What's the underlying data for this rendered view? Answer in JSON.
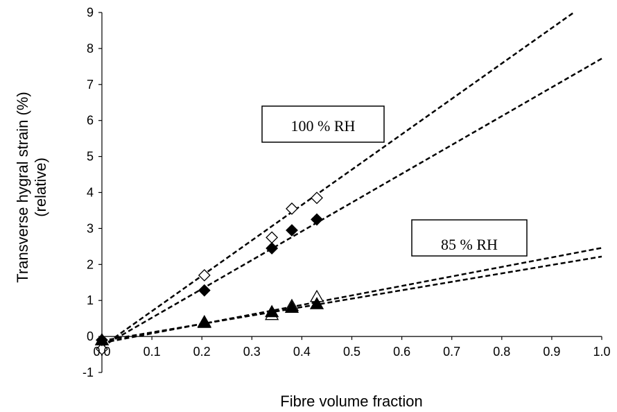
{
  "chart_data": {
    "type": "scatter",
    "title": "",
    "xlabel": "Fibre volume fraction",
    "ylabel_lines": [
      "Transverse hygral strain (%)",
      "(relative)"
    ],
    "xlim": [
      0.0,
      1.0
    ],
    "ylim": [
      -1,
      9
    ],
    "x_ticks": [
      "0.0",
      "0.1",
      "0.2",
      "0.3",
      "0.4",
      "0.5",
      "0.6",
      "0.7",
      "0.8",
      "0.9",
      "1.0"
    ],
    "y_ticks": [
      "-1",
      "0",
      "1",
      "2",
      "3",
      "4",
      "5",
      "6",
      "7",
      "8",
      "9"
    ],
    "grid": false,
    "legend": "none",
    "series": [
      {
        "marker": "diamond-open",
        "x": [
          0.0,
          0.205,
          0.34,
          0.38,
          0.43
        ],
        "y": [
          -0.35,
          1.7,
          2.75,
          3.55,
          3.85
        ]
      },
      {
        "marker": "diamond-filled",
        "x": [
          0.0,
          0.205,
          0.34,
          0.38,
          0.43
        ],
        "y": [
          -0.1,
          1.28,
          2.45,
          2.95,
          3.25
        ]
      },
      {
        "marker": "triangle-open",
        "x": [
          0.0,
          0.205,
          0.34,
          0.38,
          0.43
        ],
        "y": [
          -0.1,
          0.4,
          0.6,
          0.85,
          1.1
        ]
      },
      {
        "marker": "triangle-filled",
        "x": [
          0.0,
          0.205,
          0.34,
          0.38,
          0.43
        ],
        "y": [
          -0.1,
          0.38,
          0.68,
          0.8,
          0.9
        ]
      }
    ],
    "trendlines": [
      {
        "style": "dashed",
        "x": [
          0.0,
          1.0
        ],
        "y": [
          -0.28,
          9.55
        ]
      },
      {
        "style": "dashed",
        "x": [
          0.0,
          1.0
        ],
        "y": [
          -0.28,
          7.72
        ]
      },
      {
        "style": "dashed",
        "x": [
          0.0,
          1.0
        ],
        "y": [
          -0.18,
          2.46
        ]
      },
      {
        "style": "dashed",
        "x": [
          0.0,
          1.0
        ],
        "y": [
          -0.12,
          2.22
        ]
      }
    ],
    "annotations": [
      {
        "text": "100 % RH",
        "near": "upper-left-lines"
      },
      {
        "text": "85 % RH",
        "near": "lower-right-lines"
      }
    ]
  }
}
